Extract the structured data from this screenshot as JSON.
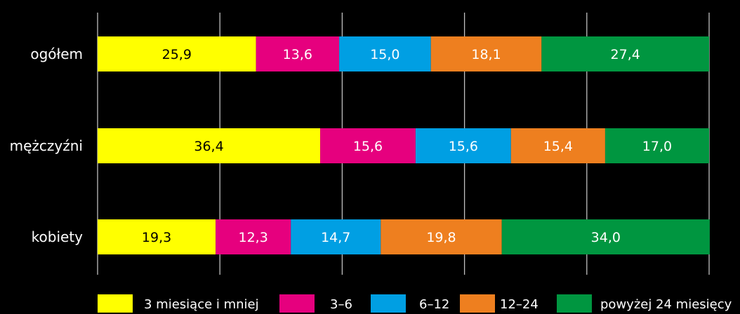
{
  "chart_data": {
    "type": "bar",
    "orientation": "horizontal",
    "stacked": true,
    "normalized_to_percent": true,
    "categories": [
      "ogółem",
      "mężczyźni",
      "kobiety"
    ],
    "series": [
      {
        "name": "3 miesiące i mniej",
        "values": [
          25.9,
          36.4,
          19.3
        ],
        "labels": [
          "25,9",
          "36,4",
          "19,3"
        ],
        "color": "#ffff00",
        "label_color": "#000000"
      },
      {
        "name": "3–6",
        "values": [
          13.6,
          15.6,
          12.3
        ],
        "labels": [
          "13,6",
          "15,6",
          "12,3"
        ],
        "color": "#e6007e",
        "label_color": "#ffffff"
      },
      {
        "name": "6–12",
        "values": [
          15.0,
          15.6,
          14.7
        ],
        "labels": [
          "15,0",
          "15,6",
          "14,7"
        ],
        "color": "#009fe3",
        "label_color": "#ffffff"
      },
      {
        "name": "12–24",
        "values": [
          18.1,
          15.4,
          19.8
        ],
        "labels": [
          "18,1",
          "15,4",
          "19,8"
        ],
        "color": "#ee7f1f",
        "label_color": "#ffffff"
      },
      {
        "name": "powyżej 24 miesięcy",
        "values": [
          27.4,
          17.0,
          34.0
        ],
        "labels": [
          "27,4",
          "17,0",
          "34,0"
        ],
        "color": "#009640",
        "label_color": "#ffffff"
      }
    ],
    "xlim": [
      0,
      100
    ],
    "grid": true,
    "gridline_values": [
      0,
      20,
      40,
      60,
      80,
      100
    ],
    "legend_position": "bottom",
    "title": "",
    "xlabel": "",
    "ylabel": ""
  }
}
